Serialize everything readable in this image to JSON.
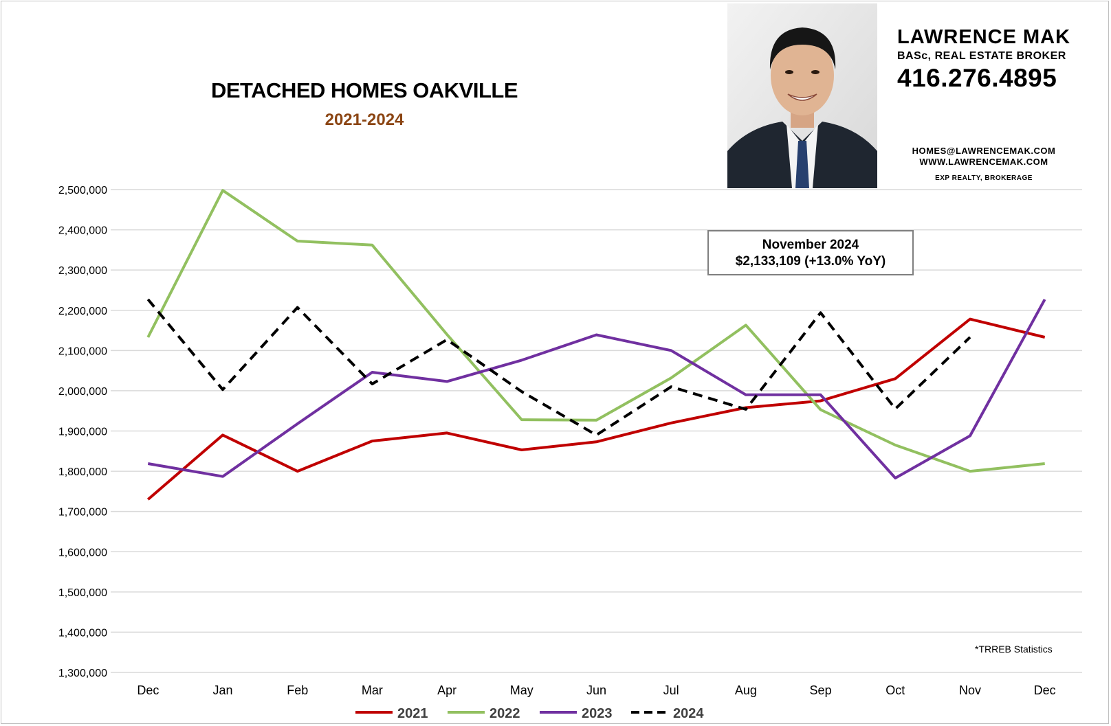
{
  "header": {
    "title": "DETACHED HOMES OAKVILLE",
    "subtitle": "2021-2024"
  },
  "agent": {
    "name": "LAWRENCE MAK",
    "credentials": "BASc, REAL ESTATE BROKER",
    "phone": "416.276.4895",
    "email": "HOMES@LAWRENCEMAK.COM",
    "website": "WWW.LAWRENCEMAK.COM",
    "brokerage": "EXP REALTY, BROKERAGE"
  },
  "callout": {
    "line1": "November 2024",
    "line2": "$2,133,109 (+13.0% YoY)"
  },
  "source_note": "*TRREB Statistics",
  "colors": {
    "2021": "#c00000",
    "2022": "#92c060",
    "2023": "#7030a0",
    "2024": "#000000",
    "grid": "#d9d9d9",
    "subtitle": "#8b4513"
  },
  "chart_data": {
    "type": "line",
    "title": "DETACHED HOMES OAKVILLE",
    "subtitle": "2021-2024",
    "xlabel": "",
    "ylabel": "",
    "categories": [
      "Dec",
      "Jan",
      "Feb",
      "Mar",
      "Apr",
      "May",
      "Jun",
      "Jul",
      "Aug",
      "Sep",
      "Oct",
      "Nov",
      "Dec"
    ],
    "ylim": [
      1300000,
      2500000
    ],
    "yticks": [
      1300000,
      1400000,
      1500000,
      1600000,
      1700000,
      1800000,
      1900000,
      2000000,
      2100000,
      2200000,
      2300000,
      2400000,
      2500000
    ],
    "ytick_labels": [
      "1,300,000",
      "1,400,000",
      "1,500,000",
      "1,600,000",
      "1,700,000",
      "1,800,000",
      "1,900,000",
      "2,000,000",
      "2,100,000",
      "2,200,000",
      "2,300,000",
      "2,400,000",
      "2,500,000"
    ],
    "grid": true,
    "legend_position": "bottom",
    "series": [
      {
        "name": "2021",
        "style": "solid",
        "values": [
          1730000,
          1890000,
          1800000,
          1875000,
          1895000,
          1853000,
          1873000,
          1920000,
          1958000,
          1975000,
          2030000,
          2178000,
          2133000
        ]
      },
      {
        "name": "2022",
        "style": "solid",
        "values": [
          2133000,
          2498000,
          2372000,
          2362000,
          2140000,
          1928000,
          1927000,
          2032000,
          2163000,
          1953000,
          1865000,
          1800000,
          1819000
        ]
      },
      {
        "name": "2023",
        "style": "solid",
        "values": [
          1819000,
          1787000,
          1918000,
          2046000,
          2023000,
          2076000,
          2139000,
          2100000,
          1990000,
          1990000,
          1783000,
          1888000,
          2227000
        ]
      },
      {
        "name": "2024",
        "style": "dashed",
        "values": [
          2227000,
          2003000,
          2207000,
          2017000,
          2127000,
          1998000,
          1890000,
          2010000,
          1954000,
          2194000,
          1955000,
          2133109,
          null
        ]
      }
    ]
  }
}
